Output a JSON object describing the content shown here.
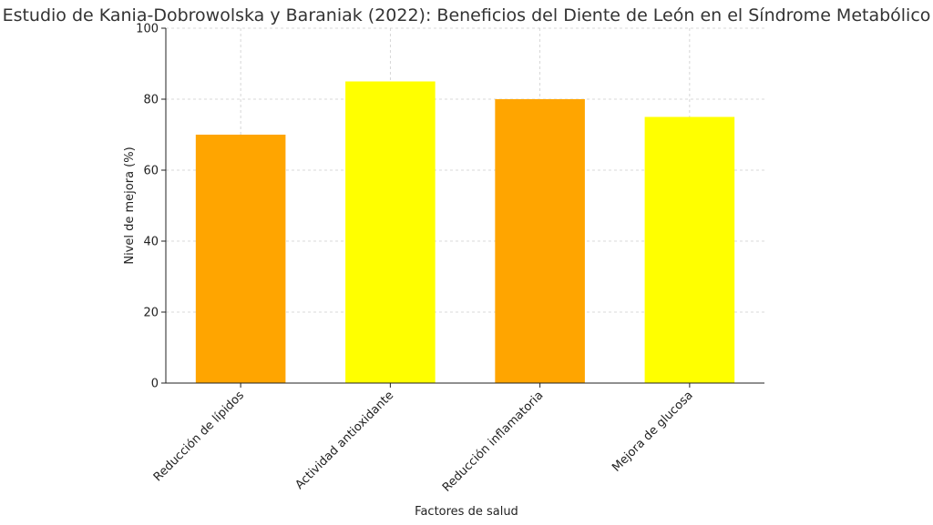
{
  "chart_data": {
    "type": "bar",
    "title": "Estudio de Kania-Dobrowolska y Baraniak (2022): Beneficios del Diente de León en el Síndrome Metabólico",
    "xlabel": "Factores de salud",
    "ylabel": "Nivel de mejora (%)",
    "categories": [
      "Reducción de lípidos",
      "Actividad antioxidante",
      "Reducción inflamatoria",
      "Mejora de glucosa"
    ],
    "values": [
      70,
      85,
      80,
      75
    ],
    "bar_colors": [
      "#FFA500",
      "#FFFF00",
      "#FFA500",
      "#FFFF00"
    ],
    "ylim": [
      0,
      100
    ],
    "yticks": [
      0,
      20,
      40,
      60,
      80,
      100
    ],
    "grid": true,
    "legend": "none"
  }
}
